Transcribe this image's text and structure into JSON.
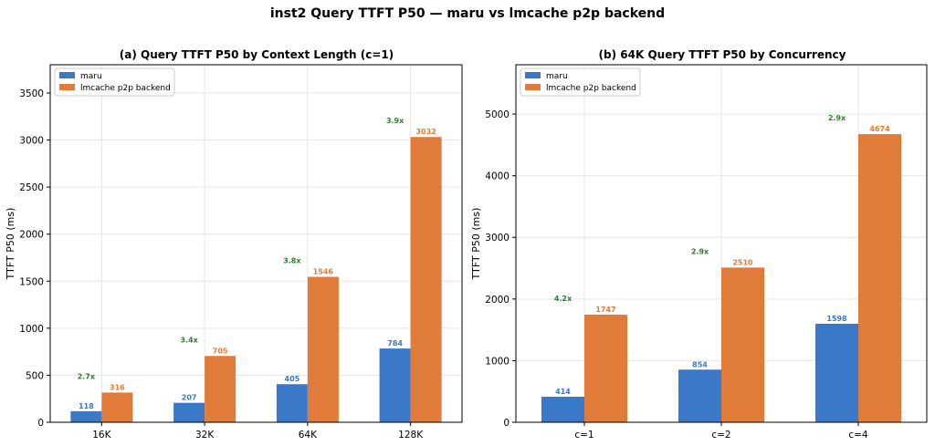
{
  "title": "inst2 Query TTFT P50 — maru vs lmcache p2p backend",
  "colors": {
    "maru": "#3a78c8",
    "lmcache": "#e07b39",
    "ratio": "#2e7d32",
    "grid": "#e6e6e6"
  },
  "chart_data": [
    {
      "type": "bar",
      "title": "(a) Query TTFT P50 by Context Length (c=1)",
      "xlabel": "",
      "ylabel": "TTFT P50 (ms)",
      "ylim": [
        0,
        3800
      ],
      "yticks": [
        0,
        500,
        1000,
        1500,
        2000,
        2500,
        3000,
        3500
      ],
      "categories": [
        "16K",
        "32K",
        "64K",
        "128K"
      ],
      "series": [
        {
          "name": "maru",
          "values": [
            118,
            207,
            405,
            784
          ]
        },
        {
          "name": "lmcache p2p backend",
          "values": [
            316,
            705,
            1546,
            3032
          ]
        }
      ],
      "ratios": [
        "2.7x",
        "3.4x",
        "3.8x",
        "3.9x"
      ],
      "legend": "top-left",
      "grid": true
    },
    {
      "type": "bar",
      "title": "(b) 64K Query TTFT P50 by Concurrency",
      "xlabel": "",
      "ylabel": "TTFT P50 (ms)",
      "ylim": [
        0,
        5800
      ],
      "yticks": [
        0,
        1000,
        2000,
        3000,
        4000,
        5000
      ],
      "categories": [
        "c=1",
        "c=2",
        "c=4"
      ],
      "series": [
        {
          "name": "maru",
          "values": [
            414,
            854,
            1598
          ]
        },
        {
          "name": "lmcache p2p backend",
          "values": [
            1747,
            2510,
            4674
          ]
        }
      ],
      "ratios": [
        "4.2x",
        "2.9x",
        "2.9x"
      ],
      "legend": "top-left",
      "grid": true
    }
  ]
}
